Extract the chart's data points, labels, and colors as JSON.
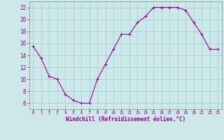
{
  "x": [
    0,
    1,
    2,
    3,
    4,
    5,
    6,
    7,
    8,
    9,
    10,
    11,
    12,
    13,
    14,
    15,
    16,
    17,
    18,
    19,
    20,
    21,
    22,
    23
  ],
  "y": [
    15.5,
    13.5,
    10.5,
    10.0,
    7.5,
    6.5,
    6.0,
    6.0,
    10.0,
    12.5,
    15.0,
    17.5,
    17.5,
    19.5,
    20.5,
    22.0,
    22.0,
    22.0,
    22.0,
    21.5,
    19.5,
    17.5,
    15.0,
    15.0
  ],
  "line_color": "#990099",
  "marker": "+",
  "marker_size": 4,
  "bg_color": "#cce8e8",
  "grid_color": "#99cccc",
  "xlabel": "Windchill (Refroidissement éolien,°C)",
  "xlabel_color": "#990099",
  "ylabel_ticks": [
    6,
    8,
    10,
    12,
    14,
    16,
    18,
    20,
    22
  ],
  "xtick_labels": [
    "0",
    "1",
    "2",
    "3",
    "4",
    "5",
    "6",
    "7",
    "8",
    "9",
    "10",
    "11",
    "12",
    "13",
    "14",
    "15",
    "16",
    "17",
    "18",
    "19",
    "20",
    "21",
    "22",
    "23"
  ],
  "ylim": [
    5.0,
    23.0
  ],
  "xlim": [
    -0.5,
    23.5
  ],
  "tick_color": "#990099",
  "spine_color": "#888888",
  "title_color": "#990099"
}
